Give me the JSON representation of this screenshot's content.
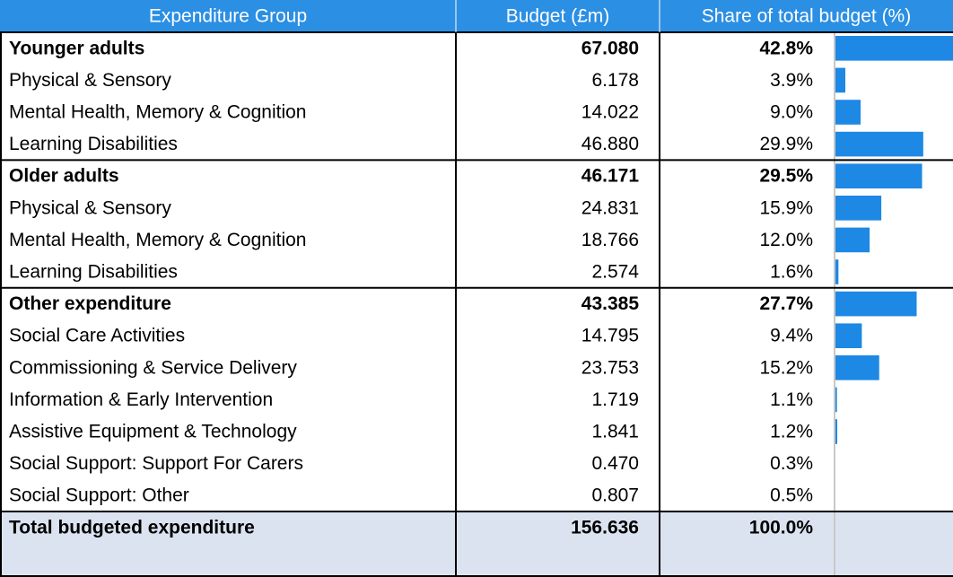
{
  "header": [
    "Expenditure Group",
    "Budget (£m)",
    "Share of total budget (%)"
  ],
  "rows": [
    {
      "label": "Younger adults",
      "budget": "67.080",
      "share": {
        "value": 42.8,
        "label": "42.8%"
      },
      "bold": true
    },
    {
      "label": "Physical & Sensory",
      "budget": "6.178",
      "share": {
        "value": 3.9,
        "label": "3.9%"
      },
      "bold": false
    },
    {
      "label": "Mental Health, Memory & Cognition",
      "budget": "14.022",
      "share": {
        "value": 9.0,
        "label": "9.0%"
      },
      "bold": false
    },
    {
      "label": "Learning Disabilities",
      "budget": "46.880",
      "share": {
        "value": 29.9,
        "label": "29.9%"
      },
      "bold": false
    },
    {
      "label": "Older adults",
      "budget": "46.171",
      "share": {
        "value": 29.5,
        "label": "29.5%"
      },
      "bold": true
    },
    {
      "label": "Physical & Sensory",
      "budget": "24.831",
      "share": {
        "value": 15.9,
        "label": "15.9%"
      },
      "bold": false
    },
    {
      "label": "Mental Health, Memory & Cognition",
      "budget": "18.766",
      "share": {
        "value": 12.0,
        "label": "12.0%"
      },
      "bold": false
    },
    {
      "label": "Learning Disabilities",
      "budget": "2.574",
      "share": {
        "value": 1.6,
        "label": "1.6%"
      },
      "bold": false
    },
    {
      "label": "Other expenditure",
      "budget": "43.385",
      "share": {
        "value": 27.7,
        "label": "27.7%"
      },
      "bold": true
    },
    {
      "label": "Social Care Activities",
      "budget": "14.795",
      "share": {
        "value": 9.4,
        "label": "9.4%"
      },
      "bold": false
    },
    {
      "label": "Commissioning & Service Delivery",
      "budget": "23.753",
      "share": {
        "value": 15.2,
        "label": "15.2%"
      },
      "bold": false
    },
    {
      "label": "Information & Early Intervention",
      "budget": "1.719",
      "share": {
        "value": 1.1,
        "label": "1.1%"
      },
      "bold": false
    },
    {
      "label": "Assistive Equipment & Technology",
      "budget": "1.841",
      "share": {
        "value": 1.2,
        "label": "1.2%"
      },
      "bold": false
    },
    {
      "label": "Social Support: Support For Carers",
      "budget": "0.470",
      "share": {
        "value": 0.3,
        "label": "0.3%"
      },
      "bold": false
    },
    {
      "label": "Social Support: Other",
      "budget": "0.807",
      "share": {
        "value": 0.5,
        "label": "0.5%"
      },
      "bold": false
    }
  ],
  "total": {
    "label": "Total budgeted expenditure",
    "budget": "156.636",
    "share": {
      "value": 100.0,
      "label": "100.0%"
    }
  },
  "bar_color": "#1e88e5",
  "header_color": "#2b8fe3",
  "total_color": "#dce3f0"
}
